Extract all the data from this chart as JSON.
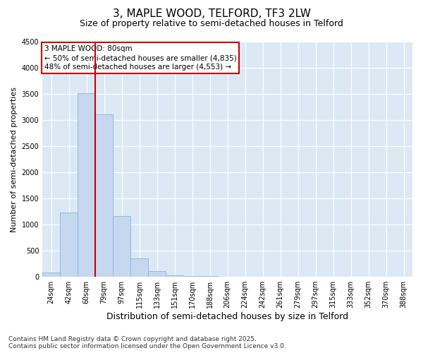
{
  "title": "3, MAPLE WOOD, TELFORD, TF3 2LW",
  "subtitle": "Size of property relative to semi-detached houses in Telford",
  "xlabel": "Distribution of semi-detached houses by size in Telford",
  "ylabel": "Number of semi-detached properties",
  "categories": [
    "24sqm",
    "42sqm",
    "60sqm",
    "79sqm",
    "97sqm",
    "115sqm",
    "133sqm",
    "151sqm",
    "170sqm",
    "188sqm",
    "206sqm",
    "224sqm",
    "242sqm",
    "261sqm",
    "279sqm",
    "297sqm",
    "315sqm",
    "333sqm",
    "352sqm",
    "370sqm",
    "388sqm"
  ],
  "values": [
    80,
    1230,
    3520,
    3110,
    1160,
    350,
    110,
    30,
    20,
    10,
    5,
    0,
    0,
    0,
    0,
    0,
    0,
    0,
    0,
    0,
    0
  ],
  "bar_color": "#c5d8ef",
  "bar_edge_color": "#8ab4d8",
  "vline_color": "#cc0000",
  "vline_bar_index": 3,
  "ylim": [
    0,
    4500
  ],
  "yticks": [
    0,
    500,
    1000,
    1500,
    2000,
    2500,
    3000,
    3500,
    4000,
    4500
  ],
  "annotation_title": "3 MAPLE WOOD: 80sqm",
  "annotation_line1": "← 50% of semi-detached houses are smaller (4,835)",
  "annotation_line2": "48% of semi-detached houses are larger (4,553) →",
  "annotation_box_color": "#cc0000",
  "annotation_bg": "#ffffff",
  "footer_line1": "Contains HM Land Registry data © Crown copyright and database right 2025.",
  "footer_line2": "Contains public sector information licensed under the Open Government Licence v3.0.",
  "fig_bg_color": "#ffffff",
  "plot_bg_color": "#dce9f5",
  "grid_color": "#ffffff",
  "title_fontsize": 11,
  "subtitle_fontsize": 9,
  "ylabel_fontsize": 8,
  "xlabel_fontsize": 9,
  "tick_fontsize": 7,
  "annotation_fontsize": 7.5,
  "footer_fontsize": 6.5
}
